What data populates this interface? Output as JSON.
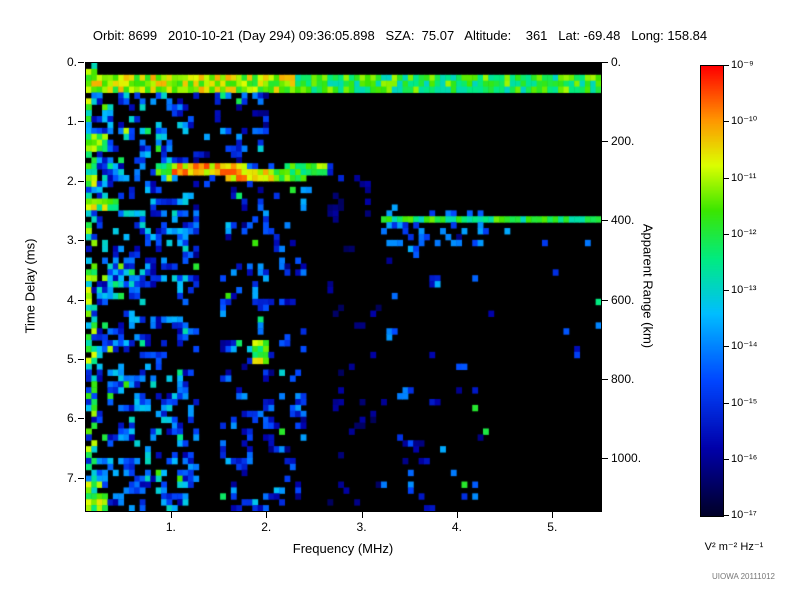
{
  "header": {
    "line": "Orbit: 8699   2010-10-21 (Day 294) 09:36:05.898   SZA:  75.07   Altitude:    361   Lat: -69.48   Long: 158.84",
    "orbit": "8699",
    "date": "2010-10-21",
    "day": "294",
    "time": "09:36:05.898",
    "sza": "75.07",
    "altitude": "361",
    "lat": "-69.48",
    "long": "158.84"
  },
  "credit": "UIOWA 20111012",
  "chart_data": {
    "type": "heatmap",
    "title": "",
    "xlabel": "Frequency (MHz)",
    "ylabel": "Time Delay (ms)",
    "y2label": "Apparent Range (km)",
    "xlim": [
      0.1,
      5.5
    ],
    "ylim": [
      0,
      7.54
    ],
    "y2lim": [
      0,
      1131
    ],
    "grid": false,
    "x_ticks": [
      {
        "v": 1,
        "label": "1."
      },
      {
        "v": 2,
        "label": "2."
      },
      {
        "v": 3,
        "label": "3."
      },
      {
        "v": 4,
        "label": "4."
      },
      {
        "v": 5,
        "label": "5."
      }
    ],
    "y_ticks": [
      {
        "v": 0,
        "label": "0."
      },
      {
        "v": 1,
        "label": "1."
      },
      {
        "v": 2,
        "label": "2."
      },
      {
        "v": 3,
        "label": "3."
      },
      {
        "v": 4,
        "label": "4."
      },
      {
        "v": 5,
        "label": "5."
      },
      {
        "v": 6,
        "label": "6."
      },
      {
        "v": 7,
        "label": "7."
      }
    ],
    "y2_ticks": [
      {
        "v": 0,
        "label": "0."
      },
      {
        "v": 200,
        "label": "200."
      },
      {
        "v": 400,
        "label": "400."
      },
      {
        "v": 600,
        "label": "600."
      },
      {
        "v": 800,
        "label": "800."
      },
      {
        "v": 1000,
        "label": "1000."
      }
    ],
    "colorbar": {
      "orientation": "vertical",
      "ticks": [
        "10⁻⁹",
        "10⁻¹⁰",
        "10⁻¹¹",
        "10⁻¹²",
        "10⁻¹³",
        "10⁻¹⁴",
        "10⁻¹⁵",
        "10⁻¹⁶",
        "10⁻¹⁷"
      ],
      "unit": "V² m⁻² Hz⁻¹",
      "top_color": "#ff0000",
      "bottom_color": "#000028"
    },
    "features": {
      "grid_cells": {
        "nf": 96,
        "nt": 76
      },
      "background": {
        "p0": 0.85,
        "slope": 0.115,
        "pmin": 0.18,
        "low_freq_edge": 1.15,
        "quiet_zones": [
          {
            "f": [
              3.2,
              5.5
            ],
            "t": [
              0,
              2.4
            ],
            "factor": 0.3
          },
          {
            "f": [
              2.0,
              3.2
            ],
            "t": [
              0,
              1.7
            ],
            "factor": 0.5
          },
          {
            "f": [
              0.1,
              5.5
            ],
            "t": [
              0,
              0.22
            ],
            "factor": 0.12
          }
        ]
      },
      "transmit_band": {
        "t": [
          0.24,
          0.46
        ],
        "bright_below_f": 2.3,
        "v_bright": 0.62,
        "v_dim": 0.5
      },
      "echo_traces": [
        {
          "f": [
            0.85,
            2.68
          ],
          "t0": 1.82,
          "wiggle": 0.05,
          "halfwidth": 0.12,
          "v": 0.55,
          "boost_f": [
            1.0,
            2.05
          ],
          "boost": 0.18
        },
        {
          "f": [
            3.2,
            5.5
          ],
          "t0": 2.62,
          "wiggle": 0.0,
          "halfwidth": 0.09,
          "v": 0.5,
          "fuzz": {
            "f": [
              3.2,
              4.3
            ],
            "t": [
              2.5,
              3.1
            ],
            "p": 0.3
          }
        }
      ],
      "dark_columns": [
        {
          "f": [
            1.3,
            1.48
          ],
          "t": [
            2.25,
            7.6
          ],
          "factor": 0.05
        },
        {
          "f": [
            2.4,
            2.63
          ],
          "t": [
            2.2,
            7.6
          ],
          "factor": 0.05
        },
        {
          "f": [
            2.63,
            3.18
          ],
          "t": [
            0.55,
            7.6
          ],
          "factor": 0.35
        }
      ],
      "bright_patches": [
        {
          "f": [
            0.1,
            0.42
          ],
          "t": [
            2.3,
            2.52
          ]
        },
        {
          "f": [
            0.1,
            0.3
          ],
          "t": [
            1.15,
            1.45
          ]
        },
        {
          "f": [
            1.87,
            2.0
          ],
          "t": [
            4.7,
            5.05
          ]
        },
        {
          "f": [
            0.1,
            0.3
          ],
          "t": [
            7.25,
            7.54
          ]
        }
      ],
      "left_edge": {
        "f": 0.24,
        "p": 0.45
      }
    }
  }
}
